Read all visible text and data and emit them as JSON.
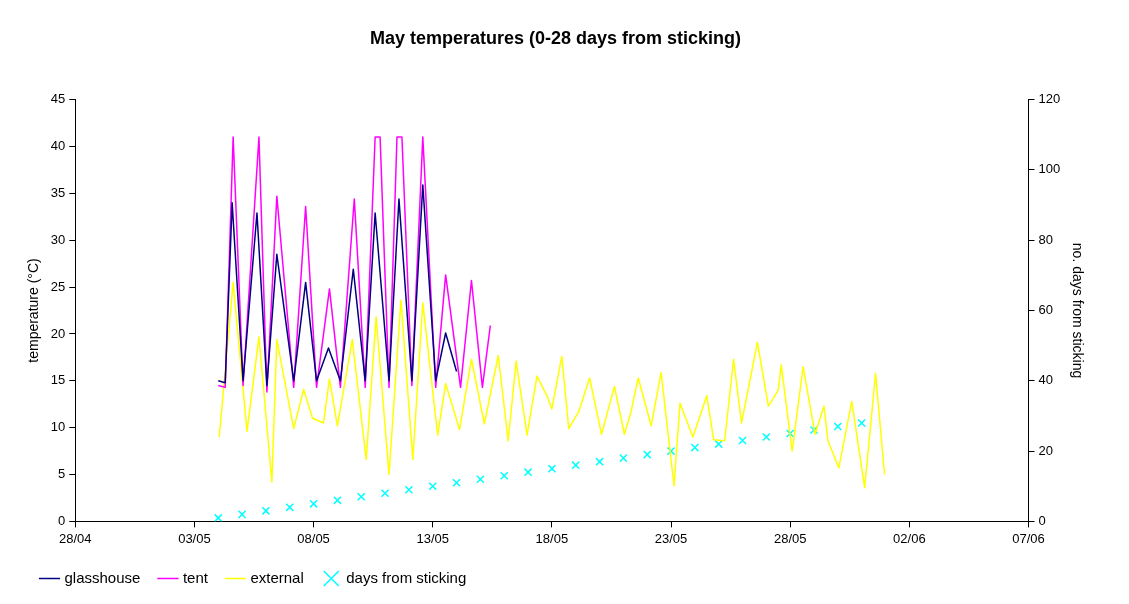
{
  "chart_data": {
    "type": "line",
    "title": "May temperatures (0-28 days from sticking)",
    "ylabel": "temperature (°C)",
    "y2label": "no. days from sticking",
    "xlim": [
      "--04-28",
      "--06-07"
    ],
    "xticks": [
      {
        "value": "--04-28",
        "label": "28/04"
      },
      {
        "value": "--05-03",
        "label": "03/05"
      },
      {
        "value": "--05-08",
        "label": "08/05"
      },
      {
        "value": "--05-13",
        "label": "13/05"
      },
      {
        "value": "--05-18",
        "label": "18/05"
      },
      {
        "value": "--05-23",
        "label": "23/05"
      },
      {
        "value": "--05-28",
        "label": "28/05"
      },
      {
        "value": "--06-02",
        "label": "02/06"
      },
      {
        "value": "--06-07",
        "label": "07/06"
      }
    ],
    "ylim": [
      0,
      45
    ],
    "yticks": [
      0,
      5,
      10,
      15,
      20,
      25,
      30,
      35,
      40,
      45
    ],
    "y2lim": [
      0,
      120
    ],
    "y2ticks": [
      0,
      20,
      40,
      60,
      80,
      100,
      120
    ],
    "legend": "bottom left",
    "series": [
      {
        "name": "glasshouse",
        "color": "#000080",
        "x": [
          "--05-04T00:00",
          "--05-04T07:00",
          "--05-04T14:00",
          "--05-05T01:00",
          "--05-05T15:00",
          "--05-06T01:00",
          "--05-06T11:00",
          "--05-07T04:00",
          "--05-07T16:00",
          "--05-08T03:00",
          "--05-08T15:00",
          "--05-09T03:00",
          "--05-09T16:00",
          "--05-10T04:00",
          "--05-10T14:00",
          "--05-11T04:00",
          "--05-11T14:00",
          "--05-12T03:00",
          "--05-12T14:00",
          "--05-13T03:00",
          "--05-13T13:00",
          "--05-14T00:00"
        ],
        "values": [
          15,
          14.8,
          34,
          15,
          32.9,
          14.5,
          28.5,
          15,
          25.5,
          15,
          18.5,
          15,
          26.9,
          15,
          32.9,
          15,
          34.4,
          15,
          35.9,
          15,
          20.1,
          16
        ]
      },
      {
        "name": "tent",
        "color": "#ff00ff",
        "x": [
          "--05-04T00:00",
          "--05-04T07:00",
          "--05-04T15:00",
          "--05-05T01:00",
          "--05-05T17:00",
          "--05-06T01:00",
          "--05-06T11:00",
          "--05-07T04:00",
          "--05-07T16:00",
          "--05-08T03:00",
          "--05-08T16:00",
          "--05-09T03:00",
          "--05-09T17:00",
          "--05-10T04:00",
          "--05-10T14:00",
          "--05-10T19:00",
          "--05-11T04:00",
          "--05-11T12:00",
          "--05-11T17:00",
          "--05-12T03:00",
          "--05-12T14:00",
          "--05-13T03:00",
          "--05-13T13:00",
          "--05-14T04:00",
          "--05-14T15:00",
          "--05-15T02:00",
          "--05-15T10:00"
        ],
        "values": [
          14.5,
          14.3,
          41,
          14.5,
          41,
          13.8,
          34.7,
          14.3,
          33.6,
          14.3,
          24.8,
          14.3,
          34.4,
          14.3,
          41,
          41,
          14.3,
          41,
          41,
          14.5,
          41,
          14.3,
          26.3,
          14.3,
          25.7,
          14.3,
          20.9
        ]
      },
      {
        "name": "external",
        "color": "#ffff00",
        "x": [
          "--05-04T01:00",
          "--05-04T15:00",
          "--05-05T05:00",
          "--05-05T17:00",
          "--05-06T06:00",
          "--05-06T11:00",
          "--05-07T04:00",
          "--05-07T14:00",
          "--05-07T23:00",
          "--05-08T10:00",
          "--05-08T16:00",
          "--05-09T00:00",
          "--05-09T15:00",
          "--05-10T05:00",
          "--05-10T15:00",
          "--05-11T04:00",
          "--05-11T16:00",
          "--05-12T04:00",
          "--05-12T14:00",
          "--05-13T05:00",
          "--05-13T13:00",
          "--05-14T03:00",
          "--05-14T15:00",
          "--05-15T04:00",
          "--05-15T18:00",
          "--05-16T04:00",
          "--05-16T12:00",
          "--05-16T23:00",
          "--05-17T09:00",
          "--05-17T19:00",
          "--05-18T00:00",
          "--05-18T10:00",
          "--05-18T17:00",
          "--05-19T03:00",
          "--05-19T14:00",
          "--05-20T02:00",
          "--05-20T15:00",
          "--05-21T01:00",
          "--05-21T07:00",
          "--05-21T15:00",
          "--05-22T04:00",
          "--05-22T14:00",
          "--05-23T03:00",
          "--05-23T09:00",
          "--05-23T22:00",
          "--05-24T12:00",
          "--05-24T19:00",
          "--05-25T06:00",
          "--05-25T15:00",
          "--05-25T23:00",
          "--05-26T15:00",
          "--05-27T02:00",
          "--05-27T12:00",
          "--05-27T15:00",
          "--05-28T02:00",
          "--05-28T13:00",
          "--05-29T01:00",
          "--05-29T10:00",
          "--05-29T14:00",
          "--05-30T01:00",
          "--05-30T14:00",
          "--05-31T03:00",
          "--05-31T14:00",
          "--05-31T23:00"
        ],
        "values": [
          9,
          25.5,
          9.6,
          19.7,
          4.2,
          19.4,
          9.9,
          14.1,
          11,
          10.5,
          15.2,
          10.2,
          19.4,
          6.6,
          21.8,
          5,
          23.6,
          6.6,
          23.3,
          9.2,
          14.7,
          9.8,
          17.3,
          10.4,
          17.7,
          8.6,
          17.1,
          9.2,
          15.5,
          13.4,
          12,
          17.6,
          9.9,
          11.7,
          15.3,
          9.3,
          14.4,
          9.3,
          11.4,
          15.3,
          10.2,
          15.9,
          3.8,
          12.6,
          9,
          13.4,
          8.7,
          8.6,
          17.3,
          10.5,
          19.1,
          12.3,
          14,
          16.7,
          7.5,
          16.5,
          9.3,
          12.3,
          8.6,
          5.7,
          12.8,
          3.6,
          15.8,
          5
        ]
      },
      {
        "name": "days from sticking",
        "type": "scatter",
        "axis": "y2",
        "marker": "cross",
        "color": "#00ffff",
        "x": [
          "--05-04",
          "--05-05",
          "--05-06",
          "--05-07",
          "--05-08",
          "--05-09",
          "--05-10",
          "--05-11",
          "--05-12",
          "--05-13",
          "--05-14",
          "--05-15",
          "--05-16",
          "--05-17",
          "--05-18",
          "--05-19",
          "--05-20",
          "--05-21",
          "--05-22",
          "--05-23",
          "--05-24",
          "--05-25",
          "--05-26",
          "--05-27",
          "--05-28",
          "--05-29",
          "--05-30",
          "--05-31"
        ],
        "values": [
          1,
          2,
          3,
          4,
          5,
          6,
          7,
          8,
          9,
          10,
          11,
          12,
          13,
          14,
          15,
          16,
          17,
          18,
          19,
          20,
          21,
          22,
          23,
          24,
          25,
          26,
          27,
          28
        ]
      }
    ]
  }
}
